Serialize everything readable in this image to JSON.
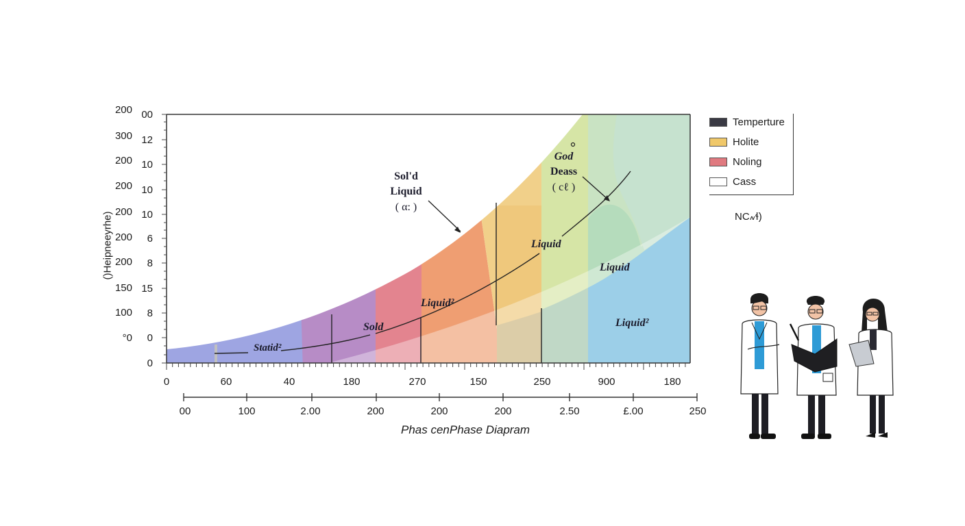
{
  "chart_data": {
    "type": "phase-diagram",
    "title": "Phas cenPhase Diapram",
    "ylabel": "()Heipneeyrhe)",
    "y_ticks_outer": [
      "200",
      "300",
      "200",
      "200",
      "200",
      "200",
      "200",
      "150",
      "100",
      "°0",
      "0"
    ],
    "y_ticks_inner": [
      "00",
      "12",
      "10",
      "10",
      "10",
      "6",
      "8",
      "15",
      "8",
      "0",
      "0"
    ],
    "x_ticks_top": [
      "0",
      "60",
      "40",
      "180",
      "270",
      "150",
      "250",
      "900",
      "180"
    ],
    "x_ticks_bottom": [
      "00",
      "100",
      "2.00",
      "200",
      "200",
      "200",
      "2.50",
      "£.00",
      "250"
    ],
    "regions": [
      {
        "name": "Statid²",
        "color": "#9aa3e0"
      },
      {
        "name": "purple band",
        "color": "#b98bc6"
      },
      {
        "name": "Sold",
        "color": "#e3848f"
      },
      {
        "name": "Liquid²",
        "color": "#ef9e72"
      },
      {
        "name": "Liquid (yellow)",
        "color": "#f2d48a"
      },
      {
        "name": "light green",
        "color": "#d6e6a5"
      },
      {
        "name": "Liquid (green)",
        "color": "#b9dfb9"
      },
      {
        "name": "Liquid² (blue)",
        "color": "#9ccfe8"
      }
    ],
    "annotations": [
      {
        "text": "Sold Liquid (α:)",
        "arrow": true
      },
      {
        "text": "God Deass (cℓ)",
        "arrow": true
      },
      {
        "text": "Liquid"
      },
      {
        "text": "Liquid"
      },
      {
        "text": "Liquid²"
      },
      {
        "text": "Liquid²"
      },
      {
        "text": "Sold"
      },
      {
        "text": "Statid²"
      }
    ],
    "legend": [
      {
        "label": "Temperture",
        "color": "#3a3a44"
      },
      {
        "label": "Holite",
        "color": "#f0c86a"
      },
      {
        "label": "Noling",
        "color": "#e07a80"
      },
      {
        "label": "Cass",
        "color": "#ffffff"
      }
    ],
    "legend_note": "NC៷ɬ)",
    "legend_position": "right"
  },
  "labels": {
    "solid_liquid": [
      "Sol'd",
      "Liquid",
      "( α: )"
    ],
    "god_deass": [
      "God",
      "Deass",
      "( cℓ )"
    ],
    "liquid_1": "Liquid",
    "liquid_2": "Liquid",
    "liquid_3": "Liquid²",
    "liquid_4": "Liquid²",
    "sold": "Sold",
    "statid": "Statid²"
  },
  "illustration": {
    "description": "three scientists in lab coats"
  }
}
